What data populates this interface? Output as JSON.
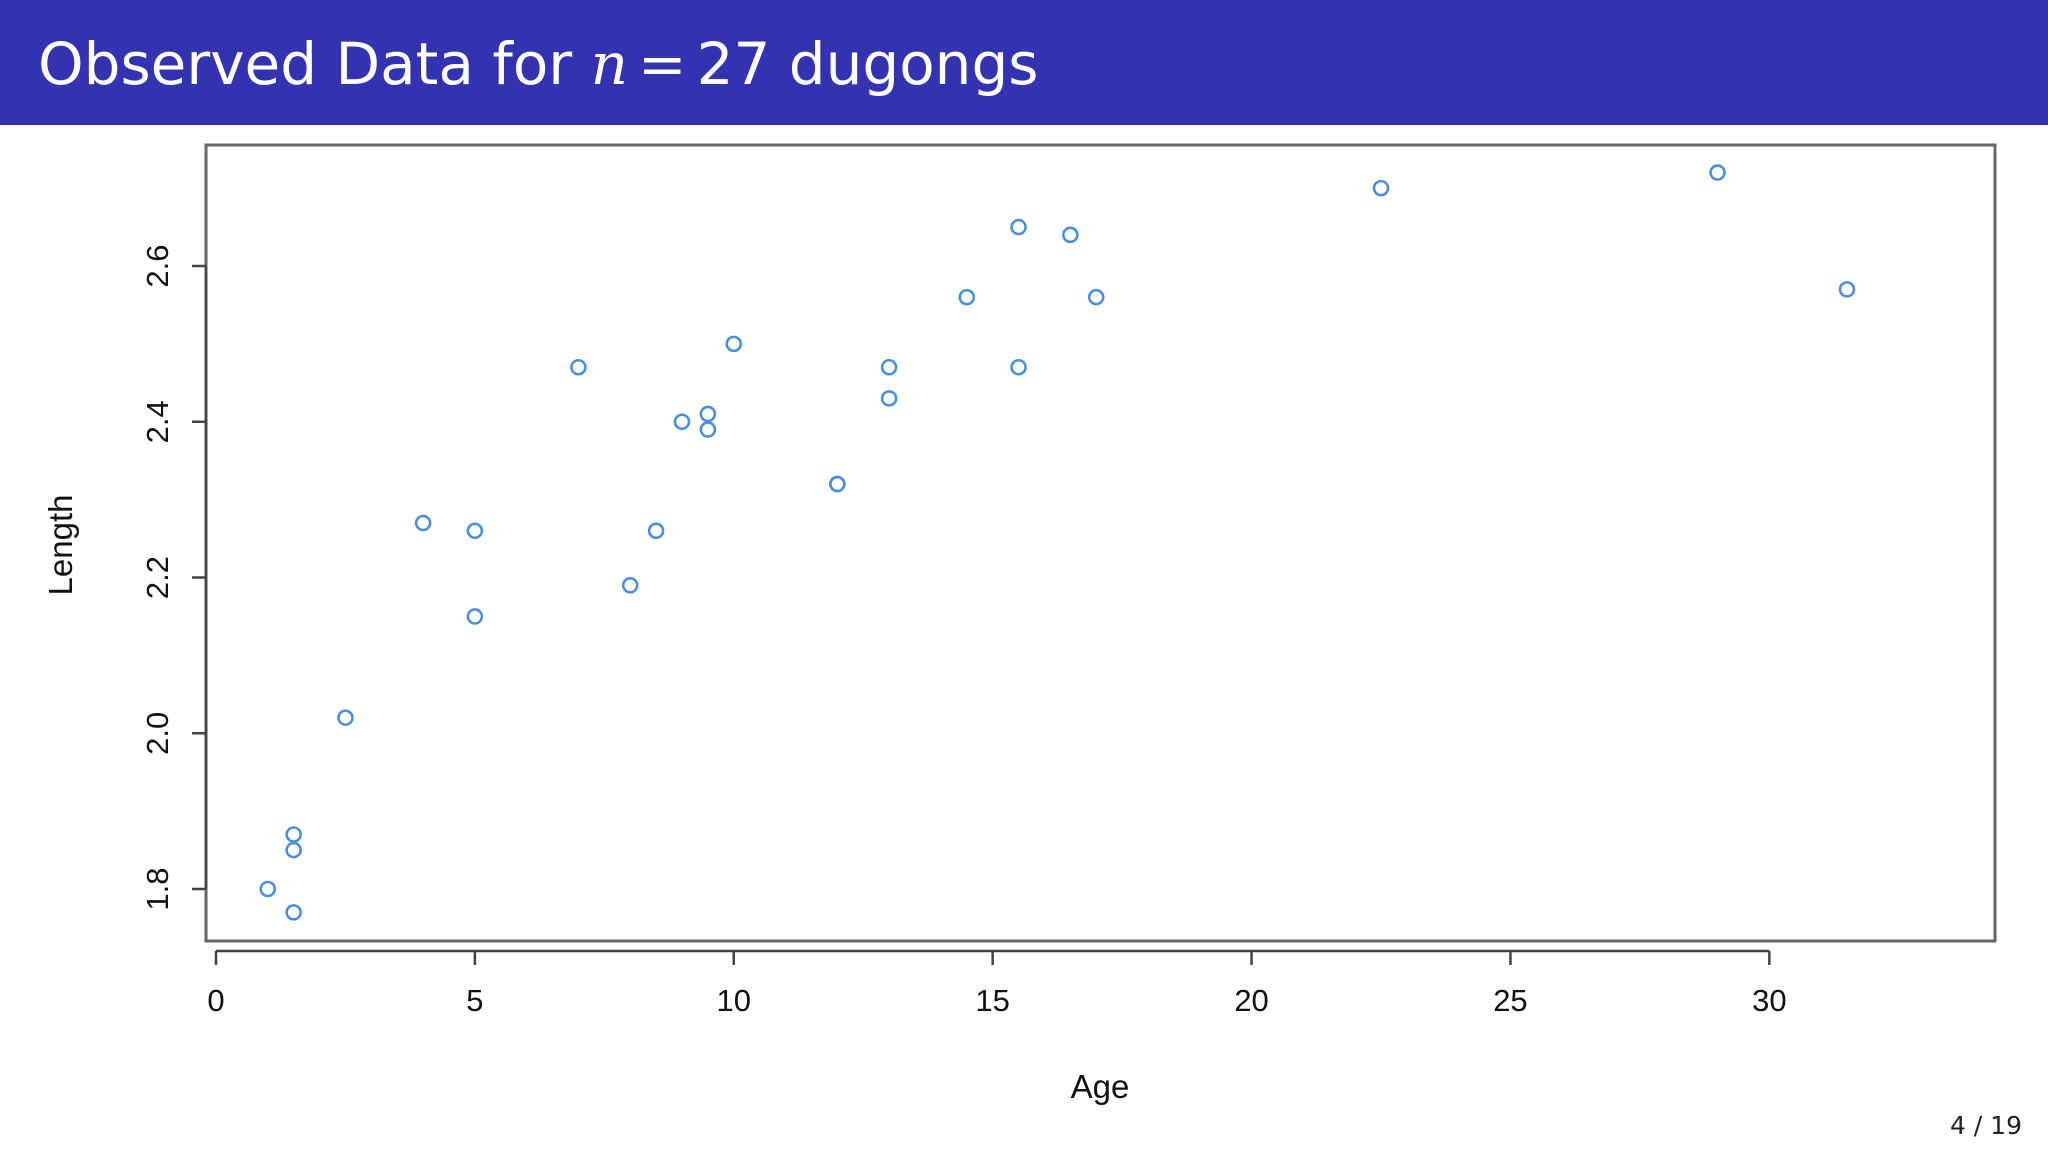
{
  "slide": {
    "title_prefix": "Observed Data for",
    "title_var": "n",
    "title_op": "=",
    "title_suffix": "27 dugongs",
    "page_number": "4 / 19",
    "header_color": "#3333b2"
  },
  "chart_data": {
    "type": "scatter",
    "xlabel": "Age",
    "ylabel": "Length",
    "xlim": [
      0,
      33
    ],
    "ylim": [
      1.73,
      2.76
    ],
    "x_ticks": [
      0,
      5,
      10,
      15,
      20,
      25,
      30
    ],
    "x_tick_labels": [
      "0",
      "5",
      "10",
      "15",
      "20",
      "25",
      "30"
    ],
    "y_ticks": [
      1.8,
      2.0,
      2.2,
      2.4,
      2.6
    ],
    "y_tick_labels": [
      "1.8",
      "2.0",
      "2.2",
      "2.4",
      "2.6"
    ],
    "marker": "open-circle",
    "point_color": "#4a90d9",
    "grid": false,
    "points": [
      {
        "x": 1.0,
        "y": 1.8
      },
      {
        "x": 1.5,
        "y": 1.85
      },
      {
        "x": 1.5,
        "y": 1.87
      },
      {
        "x": 1.5,
        "y": 1.77
      },
      {
        "x": 2.5,
        "y": 2.02
      },
      {
        "x": 4.0,
        "y": 2.27
      },
      {
        "x": 5.0,
        "y": 2.15
      },
      {
        "x": 5.0,
        "y": 2.26
      },
      {
        "x": 7.0,
        "y": 2.47
      },
      {
        "x": 8.0,
        "y": 2.19
      },
      {
        "x": 8.5,
        "y": 2.26
      },
      {
        "x": 9.0,
        "y": 2.4
      },
      {
        "x": 9.5,
        "y": 2.39
      },
      {
        "x": 9.5,
        "y": 2.41
      },
      {
        "x": 10.0,
        "y": 2.5
      },
      {
        "x": 12.0,
        "y": 2.32
      },
      {
        "x": 12.0,
        "y": 2.32
      },
      {
        "x": 13.0,
        "y": 2.43
      },
      {
        "x": 13.0,
        "y": 2.47
      },
      {
        "x": 14.5,
        "y": 2.56
      },
      {
        "x": 15.5,
        "y": 2.65
      },
      {
        "x": 15.5,
        "y": 2.47
      },
      {
        "x": 16.5,
        "y": 2.64
      },
      {
        "x": 17.0,
        "y": 2.56
      },
      {
        "x": 22.5,
        "y": 2.7
      },
      {
        "x": 29.0,
        "y": 2.72
      },
      {
        "x": 31.5,
        "y": 2.57
      }
    ]
  }
}
